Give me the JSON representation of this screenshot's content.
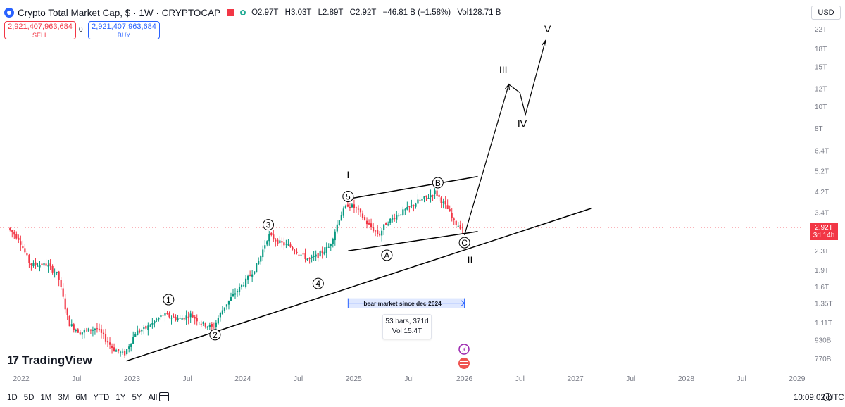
{
  "header": {
    "title": "Crypto Total Market Cap, $ · 1W · CRYPTOCAP",
    "ohlc": {
      "o_label": "O",
      "o": "2.97T",
      "h_label": "H",
      "h": "3.03T",
      "l_label": "L",
      "l": "2.89T",
      "c_label": "C",
      "c": "2.92T",
      "change": "−46.81 B (−1.58%)",
      "vol_label": "Vol",
      "vol": "128.71 B"
    }
  },
  "trade": {
    "sell_price": "2,921,407,963,684",
    "sell_label": "SELL",
    "spread": "0",
    "buy_price": "2,921,407,963,684",
    "buy_label": "BUY"
  },
  "currency": "USD",
  "price_tag": {
    "price": "2.92T",
    "countdown": "3d 14h"
  },
  "brand": "TradingView",
  "ranges": [
    "1D",
    "5D",
    "1M",
    "3M",
    "6M",
    "YTD",
    "1Y",
    "5Y",
    "All"
  ],
  "clock": "10:09:02 UTC",
  "measure": {
    "bars": "53 bars, 371d",
    "vol": "Vol 15.4T"
  },
  "chart_data": {
    "type": "candlestick",
    "title": "Crypto Total Market Cap, $ · 1W · CRYPTOCAP",
    "y_scale": "log",
    "y_ticks": [
      "22T",
      "18T",
      "15T",
      "12T",
      "10T",
      "8T",
      "6.4T",
      "5.2T",
      "4.2T",
      "3.4T",
      "2.3T",
      "1.9T",
      "1.6T",
      "1.35T",
      "1.11T",
      "930B",
      "770B"
    ],
    "y_tick_values": [
      22,
      18,
      15,
      12,
      10,
      8,
      6.4,
      5.2,
      4.2,
      3.4,
      2.3,
      1.9,
      1.6,
      1.35,
      1.11,
      0.93,
      0.77
    ],
    "x_ticks": [
      "2022",
      "Jul",
      "2023",
      "Jul",
      "2024",
      "Jul",
      "2025",
      "Jul",
      "2026",
      "Jul",
      "2027",
      "Jul",
      "2028",
      "Jul",
      "2029"
    ],
    "x_tick_times": [
      2022.0,
      2022.5,
      2023.0,
      2023.5,
      2024.0,
      2024.5,
      2025.0,
      2025.5,
      2026.0,
      2026.5,
      2027.0,
      2027.5,
      2028.0,
      2028.5,
      2029.0
    ],
    "price_path": [
      [
        2021.9,
        2.9
      ],
      [
        2022.0,
        2.6
      ],
      [
        2022.1,
        2.0
      ],
      [
        2022.25,
        2.0
      ],
      [
        2022.35,
        1.8
      ],
      [
        2022.45,
        1.1
      ],
      [
        2022.55,
        1.0
      ],
      [
        2022.7,
        1.05
      ],
      [
        2022.85,
        0.85
      ],
      [
        2022.95,
        0.8
      ],
      [
        2023.05,
        1.0
      ],
      [
        2023.15,
        1.05
      ],
      [
        2023.3,
        1.2
      ],
      [
        2023.45,
        1.15
      ],
      [
        2023.55,
        1.2
      ],
      [
        2023.65,
        1.1
      ],
      [
        2023.75,
        1.05
      ],
      [
        2023.85,
        1.3
      ],
      [
        2023.95,
        1.5
      ],
      [
        2024.05,
        1.7
      ],
      [
        2024.15,
        2.0
      ],
      [
        2024.25,
        2.7
      ],
      [
        2024.35,
        2.5
      ],
      [
        2024.45,
        2.4
      ],
      [
        2024.55,
        2.2
      ],
      [
        2024.62,
        2.1
      ],
      [
        2024.7,
        2.2
      ],
      [
        2024.8,
        2.4
      ],
      [
        2024.9,
        3.3
      ],
      [
        2024.97,
        3.7
      ],
      [
        2025.05,
        3.5
      ],
      [
        2025.15,
        3.0
      ],
      [
        2025.25,
        2.7
      ],
      [
        2025.3,
        3.0
      ],
      [
        2025.4,
        3.3
      ],
      [
        2025.5,
        3.5
      ],
      [
        2025.6,
        3.8
      ],
      [
        2025.7,
        4.0
      ],
      [
        2025.75,
        4.2
      ],
      [
        2025.8,
        3.9
      ],
      [
        2025.87,
        3.5
      ],
      [
        2025.92,
        3.1
      ],
      [
        2025.99,
        2.92
      ]
    ],
    "annotations": [
      {
        "label": "1",
        "time": 2023.33,
        "value": 1.4
      },
      {
        "label": "2",
        "time": 2023.75,
        "value": 0.98
      },
      {
        "label": "3",
        "time": 2024.23,
        "value": 3.0
      },
      {
        "label": "4",
        "time": 2024.68,
        "value": 1.65
      },
      {
        "label": "5",
        "time": 2024.95,
        "value": 4.0
      },
      {
        "label": "A",
        "time": 2025.3,
        "value": 2.2
      },
      {
        "label": "B",
        "time": 2025.76,
        "value": 4.6
      },
      {
        "label": "C",
        "time": 2026.0,
        "value": 2.5
      },
      {
        "label": "I",
        "time": 2024.95,
        "value": 5.0
      },
      {
        "label": "II",
        "time": 2026.05,
        "value": 2.1
      },
      {
        "label": "III",
        "time": 2026.35,
        "value": 14.5
      },
      {
        "label": "IV",
        "time": 2026.52,
        "value": 8.4
      },
      {
        "label": "V",
        "time": 2026.75,
        "value": 22.0
      }
    ],
    "projection": [
      [
        2026.0,
        2.7
      ],
      [
        2026.4,
        12.5
      ],
      [
        2026.5,
        11.5
      ],
      [
        2026.55,
        9.2
      ],
      [
        2026.73,
        19.5
      ]
    ],
    "trendlines": [
      {
        "from": [
          2022.95,
          0.75
        ],
        "to": [
          2027.15,
          3.55
        ]
      },
      {
        "from": [
          2024.95,
          3.9
        ],
        "to": [
          2026.12,
          4.9
        ]
      },
      {
        "from": [
          2024.95,
          2.3
        ],
        "to": [
          2026.12,
          2.8
        ]
      }
    ],
    "date_range": {
      "from": 2024.95,
      "to": 2026.0,
      "label": "bear market since dec 2024",
      "value": 1.35
    },
    "last_price": 2.92
  }
}
